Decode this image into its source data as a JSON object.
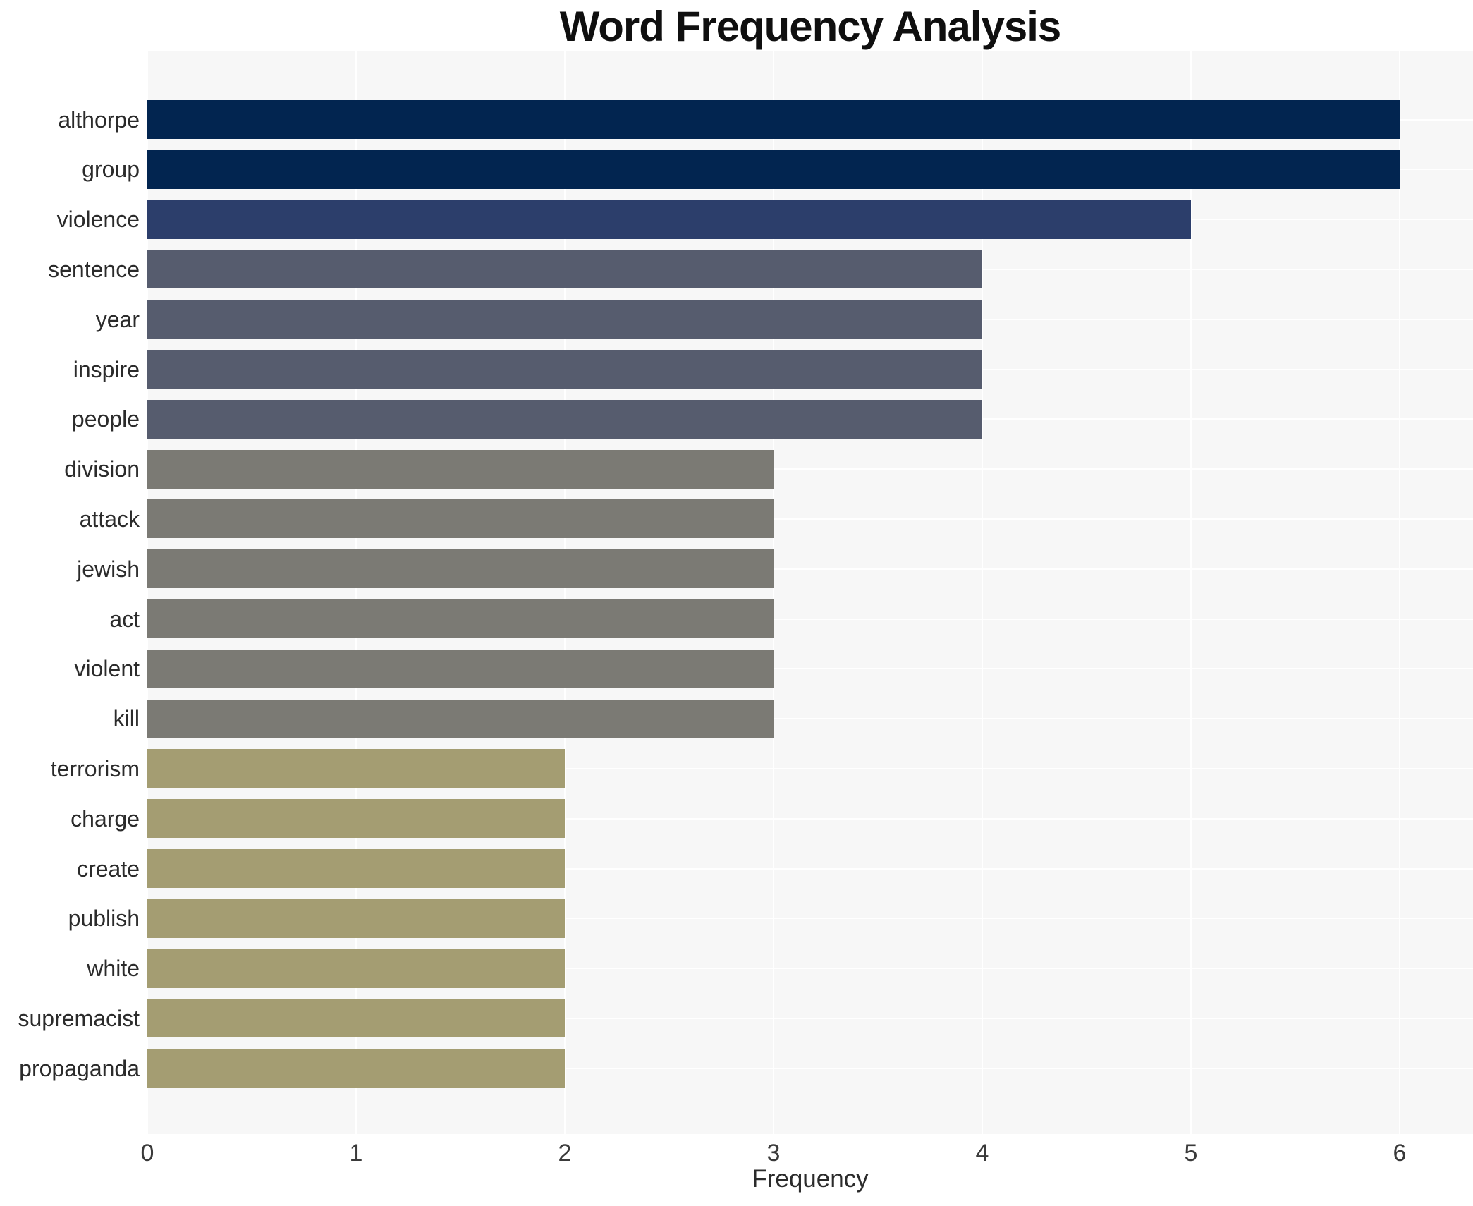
{
  "chart_data": {
    "type": "bar",
    "orientation": "horizontal",
    "title": "Word Frequency Analysis",
    "xlabel": "Frequency",
    "ylabel": "",
    "categories": [
      "althorpe",
      "group",
      "violence",
      "sentence",
      "year",
      "inspire",
      "people",
      "division",
      "attack",
      "jewish",
      "act",
      "violent",
      "kill",
      "terrorism",
      "charge",
      "create",
      "publish",
      "white",
      "supremacist",
      "propaganda"
    ],
    "values": [
      6,
      6,
      5,
      4,
      4,
      4,
      4,
      3,
      3,
      3,
      3,
      3,
      3,
      2,
      2,
      2,
      2,
      2,
      2,
      2
    ],
    "xticks": [
      "0",
      "1",
      "2",
      "3",
      "4",
      "5",
      "6"
    ],
    "xlim": [
      0,
      6.35
    ],
    "grid": true,
    "legend_position": "none",
    "plot_background": "#f7f7f7",
    "grid_color": "#ffffff",
    "value_colors": {
      "6": "#022550",
      "5": "#2c3e6b",
      "4": "#565c6e",
      "3": "#7b7a74",
      "2": "#a49d72"
    },
    "title_color": "#0f0f0f",
    "tick_color": "#3a3a3a",
    "label_color": "#2b2b2b"
  }
}
